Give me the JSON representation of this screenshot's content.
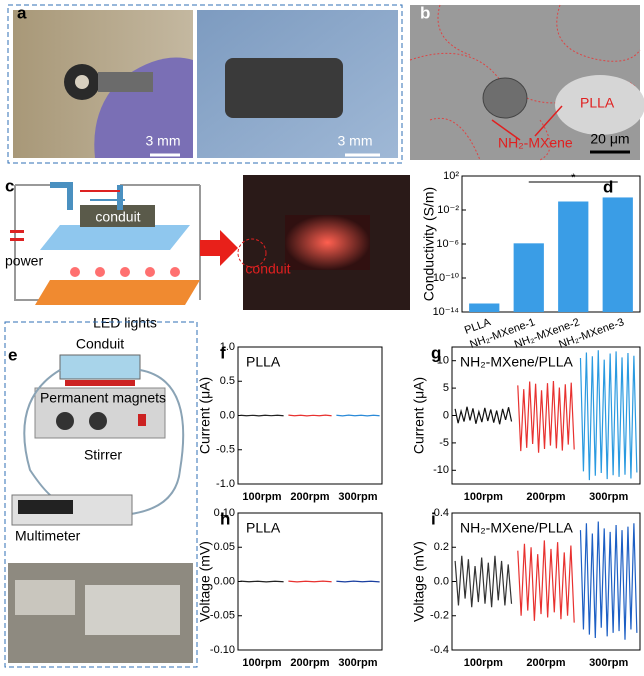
{
  "panel_labels": [
    "a",
    "b",
    "c",
    "d",
    "e",
    "f",
    "g",
    "h",
    "i"
  ],
  "panel_a": {
    "scale_bars": [
      "3 mm",
      "3 mm"
    ]
  },
  "panel_b": {
    "labels": [
      "PLLA",
      "NH₂-MXene"
    ],
    "scale_bar": "20 μm"
  },
  "panel_c": {
    "labels": [
      "conduit",
      "power",
      "LED lights",
      "conduit"
    ]
  },
  "panel_e": {
    "labels": [
      "Conduit",
      "Permanent magnets",
      "Stirrer",
      "Multimeter"
    ]
  },
  "chart_data": [
    {
      "type": "bar",
      "y_label": "Conductivity (S/m)",
      "categories": [
        "PLLA",
        "NH₂-MXene-1",
        "NH₂-MXene-2",
        "NH₂-MXene-3"
      ],
      "values": [
        1e-13,
        1.2e-06,
        0.1,
        0.3
      ],
      "color": "#3a9de6",
      "log_y": true,
      "ylim": [
        1e-14,
        100
      ],
      "yticks": [
        {
          "value": 1e-14,
          "label": "10⁻¹⁴"
        },
        {
          "value": 1e-10,
          "label": "10⁻¹⁰"
        },
        {
          "value": 1e-06,
          "label": "10⁻⁶"
        },
        {
          "value": 0.01,
          "label": "10⁻²"
        },
        {
          "value": 100,
          "label": "10²"
        }
      ],
      "annotation": "*"
    },
    {
      "type": "signal",
      "title": "PLLA",
      "y_label": "Current (μA)",
      "ylim": [
        -1,
        1
      ],
      "yticks": [
        {
          "value": -1,
          "label": "-1.0"
        },
        {
          "value": -0.5,
          "label": "-0.5"
        },
        {
          "value": 0,
          "label": "0.0"
        },
        {
          "value": 0.5,
          "label": "0.5"
        },
        {
          "value": 1,
          "label": "1.0"
        }
      ],
      "segments": [
        {
          "label": "100rpm",
          "color": "#222222",
          "values": [
            0.004,
            -0.004,
            0.003,
            -0.005,
            0.004,
            -0.003,
            0.004,
            -0.004
          ]
        },
        {
          "label": "200rpm",
          "color": "#e8312f",
          "values": [
            0.005,
            -0.004,
            0.004,
            -0.005,
            0.003,
            -0.004,
            0.005,
            -0.004
          ]
        },
        {
          "label": "300rpm",
          "color": "#2a8ad8",
          "values": [
            0.004,
            -0.005,
            0.005,
            -0.004,
            0.004,
            -0.005,
            0.004,
            -0.004
          ]
        }
      ]
    },
    {
      "type": "signal",
      "title": "NH₂-MXene/PLLA",
      "y_label": "Current (μA)",
      "ylim": [
        -12.5,
        12.5
      ],
      "yticks": [
        -10,
        -5,
        0,
        5,
        10
      ],
      "segments": [
        {
          "label": "100rpm",
          "color": "#111111",
          "values": [
            1.2,
            -1.4,
            0.8,
            -1.1,
            1.6,
            -0.9,
            1.3,
            -1.5,
            0.7,
            -1.2,
            1.4,
            -1.0,
            1.1,
            -1.3,
            0.9,
            -1.6,
            1.2,
            -0.8,
            1.5,
            -1.1
          ]
        },
        {
          "label": "200rpm",
          "color": "#e8312f",
          "values": [
            5.5,
            -6.5,
            4.8,
            -5.9,
            6.2,
            -5.2,
            5.8,
            -6.8,
            4.6,
            -6.1,
            5.9,
            -5.5,
            6.3,
            -6.0,
            5.1,
            -6.4,
            5.7,
            -5.3,
            6.0,
            -6.2
          ]
        },
        {
          "label": "300rpm",
          "color": "#2a9ae0",
          "values": [
            10.5,
            -10.2,
            11.5,
            -11.8,
            10.8,
            -11.0,
            11.9,
            -10.5,
            10.2,
            -11.6,
            11.3,
            -10.9,
            11.7,
            -11.2,
            10.6,
            -10.8,
            11.4,
            -11.5,
            10.9,
            -10.4
          ]
        }
      ]
    },
    {
      "type": "signal",
      "title": "PLLA",
      "y_label": "Voltage (mV)",
      "ylim": [
        -0.1,
        0.1
      ],
      "yticks": [
        {
          "value": -0.1,
          "label": "-0.10"
        },
        {
          "value": -0.05,
          "label": "-0.05"
        },
        {
          "value": 0,
          "label": "0.00"
        },
        {
          "value": 0.05,
          "label": "0.05"
        },
        {
          "value": 0.1,
          "label": "0.10"
        }
      ],
      "segments": [
        {
          "label": "100rpm",
          "color": "#222222",
          "values": [
            0.0005,
            -0.0004,
            0.0004,
            -0.0005,
            0.0004,
            -0.0004
          ]
        },
        {
          "label": "200rpm",
          "color": "#e8312f",
          "values": [
            0.0005,
            -0.0005,
            0.0004,
            -0.0004,
            0.0005,
            -0.0004
          ]
        },
        {
          "label": "300rpm",
          "color": "#1a3fa0",
          "values": [
            0.0004,
            -0.0005,
            0.0005,
            -0.0004,
            0.0004,
            -0.0005
          ]
        }
      ]
    },
    {
      "type": "signal",
      "title": "NH₂-MXene/PLLA",
      "y_label": "Voltage (mV)",
      "ylim": [
        -0.4,
        0.4
      ],
      "yticks": [
        {
          "value": -0.4,
          "label": "-0.4"
        },
        {
          "value": -0.2,
          "label": "-0.2"
        },
        {
          "value": 0,
          "label": "0.0"
        },
        {
          "value": 0.2,
          "label": "0.2"
        },
        {
          "value": 0.4,
          "label": "0.4"
        }
      ],
      "segments": [
        {
          "label": "100rpm",
          "color": "#333333",
          "values": [
            0.12,
            -0.14,
            0.15,
            -0.1,
            0.13,
            -0.15,
            0.09,
            -0.12,
            0.14,
            -0.13,
            0.11,
            -0.15,
            0.15,
            -0.11,
            0.12,
            -0.14,
            0.1,
            -0.13
          ]
        },
        {
          "label": "200rpm",
          "color": "#e8312f",
          "values": [
            0.18,
            -0.2,
            0.22,
            -0.17,
            0.2,
            -0.23,
            0.16,
            -0.19,
            0.24,
            -0.21,
            0.19,
            -0.18,
            0.23,
            -0.22,
            0.17,
            -0.2,
            0.21,
            -0.24
          ]
        },
        {
          "label": "300rpm",
          "color": "#1d5fc4",
          "values": [
            0.3,
            -0.28,
            0.34,
            -0.31,
            0.28,
            -0.33,
            0.35,
            -0.27,
            0.31,
            -0.32,
            0.29,
            -0.3,
            0.33,
            -0.29,
            0.3,
            -0.34,
            0.32,
            -0.28,
            0.34,
            -0.3
          ]
        }
      ]
    }
  ]
}
